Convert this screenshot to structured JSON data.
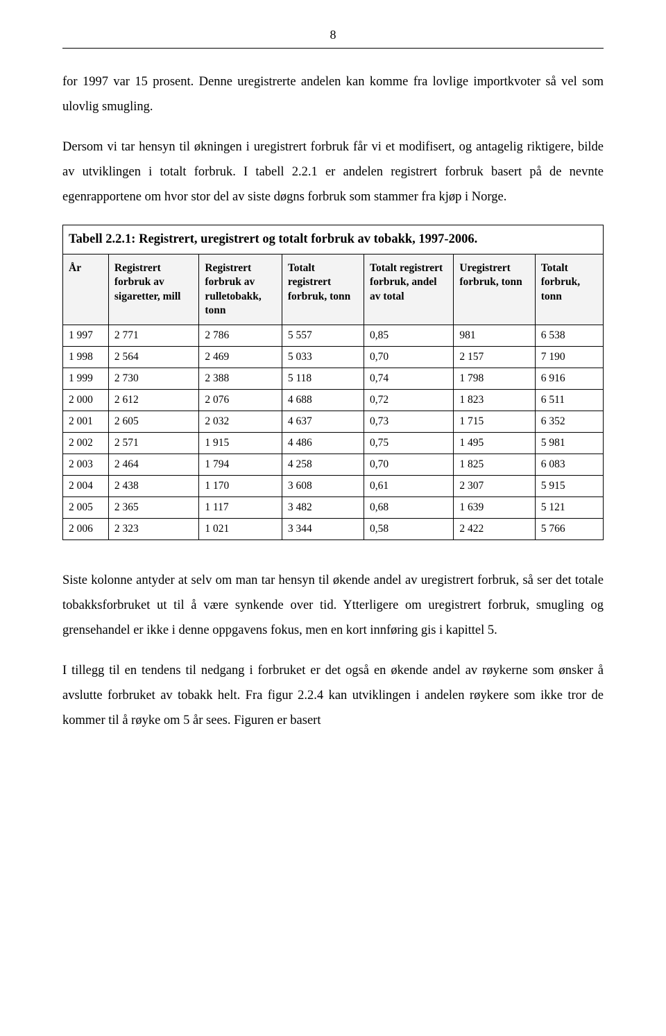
{
  "pageNumber": "8",
  "para1": "for 1997 var 15 prosent. Denne uregistrerte andelen kan komme fra lovlige importkvoter så vel som ulovlig smugling.",
  "para2": "Dersom vi tar hensyn til økningen i uregistrert forbruk får vi et modifisert, og antagelig riktigere, bilde av utviklingen i totalt forbruk. I tabell 2.2.1 er andelen registrert forbruk basert på de nevnte egenrapportene om hvor stor del av siste døgns forbruk som stammer fra kjøp i Norge.",
  "tableTitle": "Tabell 2.2.1: Registrert, uregistrert og totalt forbruk av tobakk, 1997-2006.",
  "columns": {
    "c0": "År",
    "c1": "Registrert forbruk av sigaretter, mill",
    "c2": "Registrert forbruk av rulletobakk, tonn",
    "c3": "Totalt registrert forbruk, tonn",
    "c4": "Totalt registrert forbruk, andel av total",
    "c5": "Uregistrert forbruk, tonn",
    "c6": "Totalt forbruk, tonn"
  },
  "rows": [
    [
      "1 997",
      "2 771",
      "2 786",
      "5 557",
      "0,85",
      "981",
      "6 538"
    ],
    [
      "1 998",
      "2 564",
      "2 469",
      "5 033",
      "0,70",
      "2 157",
      "7 190"
    ],
    [
      "1 999",
      "2 730",
      "2 388",
      "5 118",
      "0,74",
      "1 798",
      "6 916"
    ],
    [
      "2 000",
      "2 612",
      "2 076",
      "4 688",
      "0,72",
      "1 823",
      "6 511"
    ],
    [
      "2 001",
      "2 605",
      "2 032",
      "4 637",
      "0,73",
      "1 715",
      "6 352"
    ],
    [
      "2 002",
      "2 571",
      "1 915",
      "4 486",
      "0,75",
      "1 495",
      "5 981"
    ],
    [
      "2 003",
      "2 464",
      "1 794",
      "4 258",
      "0,70",
      "1 825",
      "6 083"
    ],
    [
      "2 004",
      "2 438",
      "1 170",
      "3 608",
      "0,61",
      "2 307",
      "5 915"
    ],
    [
      "2 005",
      "2 365",
      "1 117",
      "3 482",
      "0,68",
      "1 639",
      "5 121"
    ],
    [
      "2 006",
      "2 323",
      "1 021",
      "3 344",
      "0,58",
      "2 422",
      "5 766"
    ]
  ],
  "para3": "Siste kolonne antyder at selv om man tar hensyn til økende andel av uregistrert forbruk, så ser det totale tobakksforbruket ut til å være synkende over tid. Ytterligere om uregistrert forbruk, smugling og grensehandel er ikke i denne oppgavens fokus, men en kort innføring gis i kapittel 5.",
  "para4": "I tillegg til en tendens til nedgang i forbruket er det også en økende andel av røykerne som ønsker å avslutte forbruket av tobakk helt. Fra figur 2.2.4 kan utviklingen i andelen røykere som ikke tror de kommer til å røyke om 5 år sees. Figuren er basert"
}
